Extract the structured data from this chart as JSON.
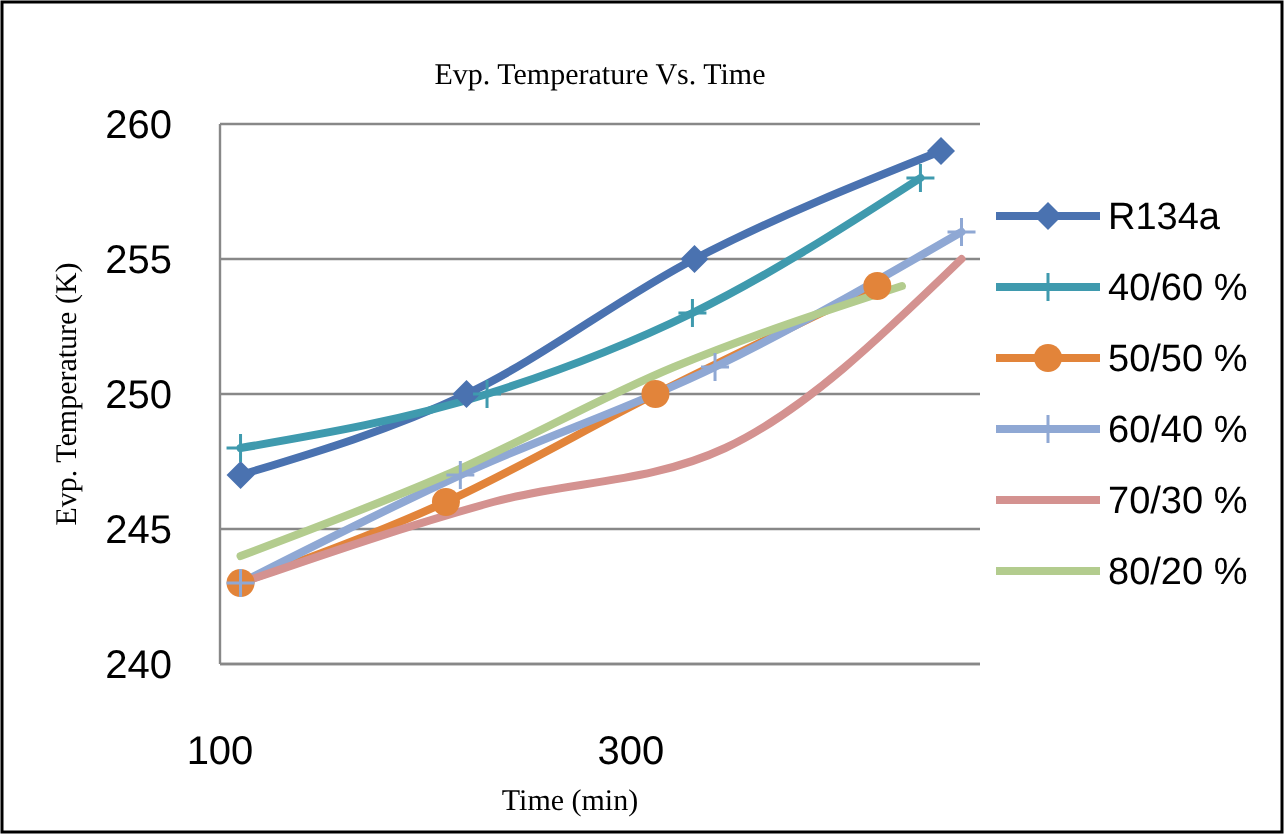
{
  "chart_data": {
    "type": "line",
    "title": "Evp. Temperature Vs. Time",
    "xlabel": "Time (min)",
    "ylabel": "Evp. Temperature (K)",
    "xlim": [
      100,
      470
    ],
    "xticks": [
      100,
      300
    ],
    "ylim": [
      240,
      260
    ],
    "yticks": [
      240,
      245,
      250,
      255,
      260
    ],
    "grid": "y",
    "legend": "right",
    "series": [
      {
        "name": "R134a",
        "color": "#4a72b0",
        "marker": "diamond",
        "x": [
          110,
          220,
          331,
          451
        ],
        "values": [
          247,
          250,
          255,
          259
        ]
      },
      {
        "name": "40/60 %",
        "color": "#3f9aae",
        "marker": "cross",
        "x": [
          110,
          230,
          330,
          441
        ],
        "values": [
          248,
          250,
          253,
          258
        ]
      },
      {
        "name": "50/50 %",
        "color": "#e2843a",
        "marker": "circle",
        "x": [
          110,
          210,
          312,
          420
        ],
        "values": [
          243,
          246,
          250,
          254
        ]
      },
      {
        "name": "60/40 %",
        "color": "#8fa8d4",
        "marker": "cross",
        "x": [
          110,
          217,
          341,
          461
        ],
        "values": [
          243,
          247,
          251,
          256
        ]
      },
      {
        "name": "70/30 %",
        "color": "#d49290",
        "marker": "none",
        "x": [
          110,
          233,
          346,
          461
        ],
        "values": [
          243,
          246,
          248,
          255
        ]
      },
      {
        "name": "80/20 %",
        "color": "#b3cc8e",
        "marker": "none",
        "x": [
          110,
          210,
          321,
          432
        ],
        "values": [
          244,
          247,
          251,
          254
        ]
      }
    ]
  }
}
